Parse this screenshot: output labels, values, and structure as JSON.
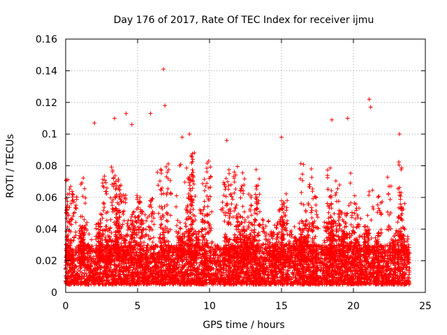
{
  "chart_data": {
    "type": "scatter",
    "title": "Day 176 of 2017, Rate Of TEC Index for receiver ijmu",
    "xlabel": "GPS time / hours",
    "ylabel": "ROTI / TECUs",
    "xlim": [
      0,
      25
    ],
    "ylim": [
      0,
      0.16
    ],
    "xticks": [
      0,
      5,
      10,
      15,
      20,
      25
    ],
    "xtick_labels": [
      "0",
      "5",
      "10",
      "15",
      "20",
      "25"
    ],
    "yticks": [
      0,
      0.02,
      0.04,
      0.06,
      0.08,
      0.1,
      0.12,
      0.14,
      0.16
    ],
    "ytick_labels": [
      "0",
      "0.02",
      "0.04",
      "0.06",
      "0.08",
      "0.1",
      "0.12",
      "0.14",
      "0.16"
    ],
    "grid": true,
    "marker": "plus",
    "color": "#ff0000",
    "series": [
      {
        "name": "ROTI",
        "x_range": [
          0,
          23.9
        ],
        "typical_range": [
          0.005,
          0.03
        ],
        "peaks": [
          {
            "x": 2.0,
            "y": 0.107
          },
          {
            "x": 3.4,
            "y": 0.11
          },
          {
            "x": 4.2,
            "y": 0.113
          },
          {
            "x": 4.6,
            "y": 0.106
          },
          {
            "x": 5.9,
            "y": 0.113
          },
          {
            "x": 6.8,
            "y": 0.141
          },
          {
            "x": 6.9,
            "y": 0.118
          },
          {
            "x": 8.1,
            "y": 0.098
          },
          {
            "x": 8.6,
            "y": 0.1
          },
          {
            "x": 11.2,
            "y": 0.096
          },
          {
            "x": 15.0,
            "y": 0.098
          },
          {
            "x": 18.5,
            "y": 0.109
          },
          {
            "x": 19.6,
            "y": 0.11
          },
          {
            "x": 21.1,
            "y": 0.122
          },
          {
            "x": 21.2,
            "y": 0.117
          },
          {
            "x": 23.2,
            "y": 0.1
          }
        ]
      }
    ]
  }
}
